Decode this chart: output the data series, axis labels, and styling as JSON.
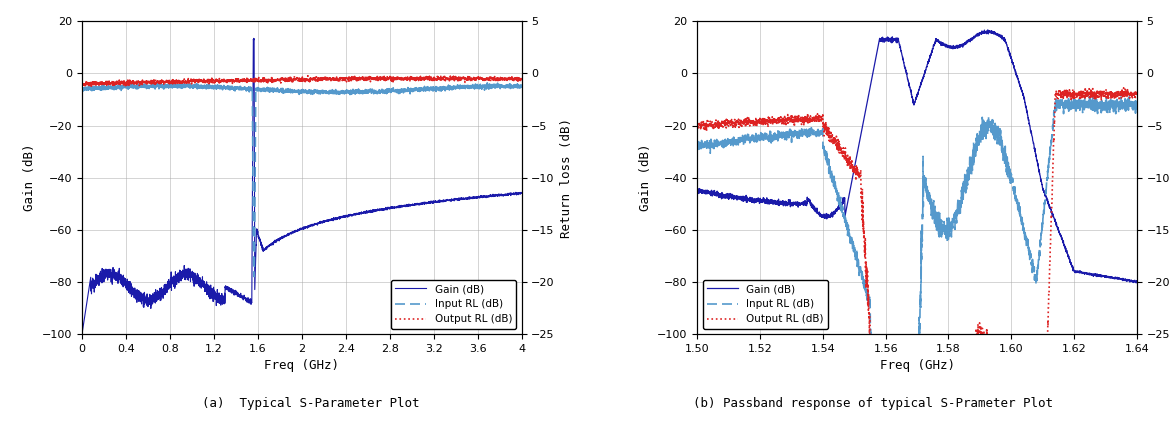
{
  "plot_a": {
    "title": "(a)  Typical S-Parameter Plot",
    "xlabel": "Freq (GHz)",
    "ylabel_left": "Gain (dB)",
    "ylabel_right": "Return loss (dB)",
    "ylim_left": [
      -100,
      20
    ],
    "ylim_right": [
      -25,
      5
    ],
    "xlim": [
      0.0,
      4.0
    ],
    "yticks_left": [
      -100,
      -80,
      -60,
      -40,
      -20,
      0,
      20
    ],
    "yticks_right": [
      -25,
      -20,
      -15,
      -10,
      -5,
      0,
      5
    ],
    "xticks": [
      0.0,
      0.4,
      0.8,
      1.2,
      1.6,
      2.0,
      2.4,
      2.8,
      3.2,
      3.6,
      4.0
    ],
    "gain_color": "#1a1aaa",
    "input_rl_color": "#5599cc",
    "output_rl_color": "#dd2222",
    "legend_labels": [
      "Gain (dB)",
      "Input RL (dB)",
      "Output RL (dB)"
    ],
    "legend_loc": "lower right"
  },
  "plot_b": {
    "title": "(b) Passband response of typical S-Prameter Plot",
    "xlabel": "Freq (GHz)",
    "ylabel_left": "Gain (dB)",
    "ylabel_right": "Return loss (dB)",
    "ylim_left": [
      -100,
      20
    ],
    "ylim_right": [
      -25,
      5
    ],
    "xlim": [
      1.5,
      1.64
    ],
    "yticks_left": [
      -100,
      -80,
      -60,
      -40,
      -20,
      0,
      20
    ],
    "yticks_right": [
      -25,
      -20,
      -15,
      -10,
      -5,
      0,
      5
    ],
    "xticks": [
      1.5,
      1.52,
      1.54,
      1.56,
      1.58,
      1.6,
      1.62,
      1.64
    ],
    "gain_color": "#1a1aaa",
    "input_rl_color": "#5599cc",
    "output_rl_color": "#dd2222",
    "legend_labels": [
      "Gain (dB)",
      "Input RL (dB)",
      "Output RL (dB)"
    ],
    "legend_loc": "lower left"
  },
  "background_color": "#ffffff",
  "grid_color": "#aaaaaa"
}
